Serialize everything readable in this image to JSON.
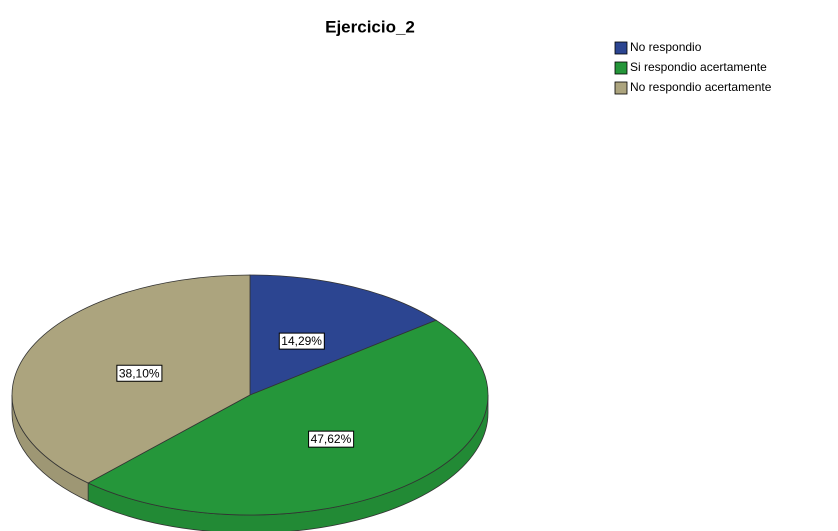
{
  "chart_data": {
    "type": "pie",
    "title": "Ejercicio_2",
    "categories": [
      "No respondio",
      "Si respondio acertamente",
      "No respondio acertamente"
    ],
    "values": [
      14.29,
      47.62,
      38.1
    ],
    "value_labels": [
      "14,29%",
      "47,62%",
      "38,10%"
    ],
    "colors": [
      "#2c4591",
      "#25963a",
      "#aca47e"
    ],
    "legend": "top-right"
  }
}
